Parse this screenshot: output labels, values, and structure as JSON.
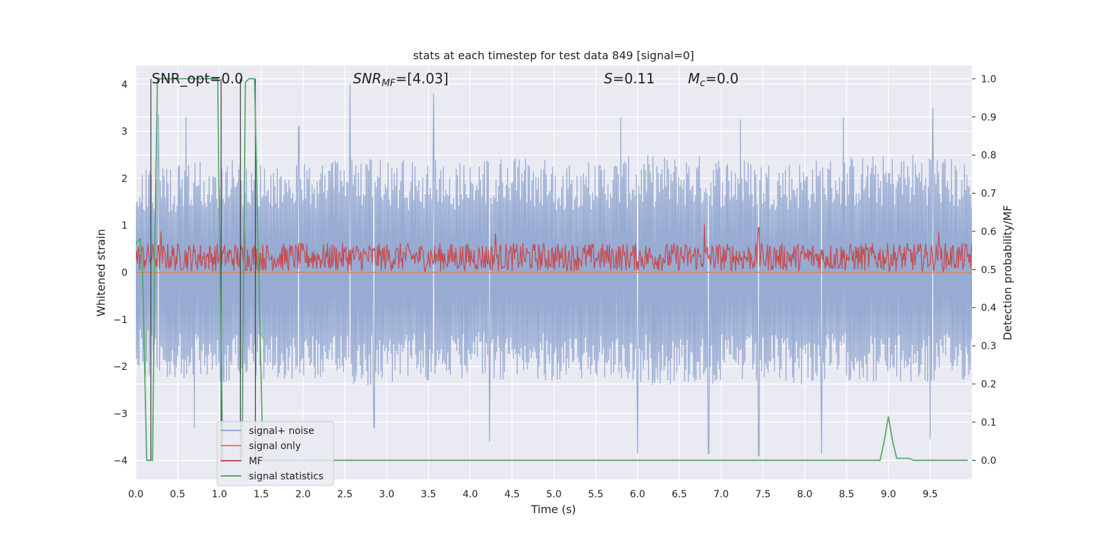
{
  "chart_data": {
    "type": "line",
    "title": "stats at each timestep for test data 849 [signal=0]",
    "xlabel": "Time (s)",
    "ylabel_left": "Whitened strain",
    "ylabel_right": "Detection probability/MF",
    "xlim": [
      0.0,
      10.0
    ],
    "ylim_left": [
      -4.4,
      4.4
    ],
    "ylim_right": [
      -0.05,
      1.035
    ],
    "grid": true,
    "legend_position": "lower-left",
    "x_ticks": [
      "0.0",
      "0.5",
      "1.0",
      "1.5",
      "2.0",
      "2.5",
      "3.0",
      "3.5",
      "4.0",
      "4.5",
      "5.0",
      "5.5",
      "6.0",
      "6.5",
      "7.0",
      "7.5",
      "8.0",
      "8.5",
      "9.0",
      "9.5"
    ],
    "y_ticks_left": [
      "4",
      "3",
      "2",
      "1",
      "0",
      "−1",
      "−2",
      "−3",
      "−4"
    ],
    "y_ticks_right": [
      "1.0",
      "0.9",
      "0.8",
      "0.7",
      "0.6",
      "0.5",
      "0.4",
      "0.3",
      "0.2",
      "0.1",
      "0.0"
    ],
    "annotations": {
      "snr_opt": "SNR_opt=0.0",
      "snr_mf_sym": "SNR",
      "snr_mf_sub": "MF",
      "snr_mf_val": "=[4.03]",
      "s_sym": "S",
      "s_val": "=0.11",
      "mc_sym": "M",
      "mc_sub": "c",
      "mc_val": "=0.0"
    },
    "series": [
      {
        "name": "signal+ noise",
        "color": "#92a8d1",
        "envelope_upper": [
          [
            0.0,
            2.2
          ],
          [
            0.5,
            2.3
          ],
          [
            1.0,
            2.4
          ],
          [
            1.5,
            2.4
          ],
          [
            2.0,
            2.3
          ],
          [
            2.5,
            2.5
          ],
          [
            3.0,
            2.4
          ],
          [
            3.5,
            2.4
          ],
          [
            4.0,
            2.4
          ],
          [
            4.5,
            2.5
          ],
          [
            5.0,
            2.4
          ],
          [
            5.5,
            2.4
          ],
          [
            6.0,
            2.5
          ],
          [
            6.5,
            2.5
          ],
          [
            7.0,
            2.5
          ],
          [
            7.5,
            2.4
          ],
          [
            8.0,
            2.4
          ],
          [
            8.5,
            2.5
          ],
          [
            9.0,
            2.5
          ],
          [
            9.5,
            2.6
          ],
          [
            10.0,
            2.3
          ]
        ],
        "envelope_lower": [
          [
            0.0,
            -2.2
          ],
          [
            0.5,
            -2.3
          ],
          [
            1.0,
            -2.4
          ],
          [
            1.5,
            -2.3
          ],
          [
            2.0,
            -2.3
          ],
          [
            2.5,
            -2.4
          ],
          [
            3.0,
            -2.4
          ],
          [
            3.5,
            -2.3
          ],
          [
            4.0,
            -2.3
          ],
          [
            4.5,
            -2.3
          ],
          [
            5.0,
            -2.3
          ],
          [
            5.5,
            -2.3
          ],
          [
            6.0,
            -2.4
          ],
          [
            6.5,
            -2.4
          ],
          [
            7.0,
            -2.4
          ],
          [
            7.5,
            -2.4
          ],
          [
            8.0,
            -2.4
          ],
          [
            8.5,
            -2.3
          ],
          [
            9.0,
            -2.4
          ],
          [
            9.5,
            -2.4
          ],
          [
            10.0,
            -2.3
          ]
        ],
        "peaks": [
          [
            0.27,
            3.35
          ],
          [
            0.6,
            3.3
          ],
          [
            1.95,
            3.1
          ],
          [
            2.56,
            4.0
          ],
          [
            3.56,
            3.8
          ],
          [
            5.8,
            3.3
          ],
          [
            7.23,
            3.25
          ],
          [
            8.46,
            3.3
          ],
          [
            9.53,
            3.5
          ]
        ],
        "troughs": [
          [
            0.7,
            -3.3
          ],
          [
            2.85,
            -3.3
          ],
          [
            4.23,
            -3.6
          ],
          [
            6.0,
            -3.85
          ],
          [
            6.85,
            -3.85
          ],
          [
            7.45,
            -3.9
          ],
          [
            8.2,
            -3.85
          ],
          [
            9.5,
            -3.55
          ]
        ]
      },
      {
        "name": "signal only",
        "color": "#dd8452",
        "values": [
          [
            0.0,
            0.0
          ],
          [
            10.0,
            0.0
          ]
        ]
      },
      {
        "name": "MF",
        "color": "#c44e52",
        "band_right_axis": [
          0.495,
          0.57
        ],
        "peaks_right_axis": [
          [
            0.3,
            0.6
          ],
          [
            1.3,
            0.6
          ],
          [
            4.3,
            0.595
          ],
          [
            6.8,
            0.62
          ],
          [
            7.45,
            0.61
          ],
          [
            9.6,
            0.6
          ]
        ]
      },
      {
        "name": "signal statistics",
        "color": "#55a868",
        "values": [
          [
            0.0,
            0.57
          ],
          [
            0.05,
            0.58
          ],
          [
            0.08,
            0.5
          ],
          [
            0.13,
            0.0
          ],
          [
            0.2,
            0.0
          ],
          [
            0.23,
            0.6
          ],
          [
            0.26,
            1.0
          ],
          [
            0.3,
            1.0
          ],
          [
            0.98,
            1.0
          ],
          [
            1.0,
            0.6
          ],
          [
            1.04,
            0.0
          ],
          [
            1.27,
            0.0
          ],
          [
            1.31,
            0.99
          ],
          [
            1.35,
            1.0
          ],
          [
            1.42,
            1.0
          ],
          [
            1.47,
            0.5
          ],
          [
            1.52,
            0.0
          ],
          [
            1.6,
            0.0
          ],
          [
            8.9,
            0.0
          ],
          [
            8.95,
            0.05
          ],
          [
            9.0,
            0.115
          ],
          [
            9.05,
            0.05
          ],
          [
            9.1,
            0.005
          ],
          [
            9.25,
            0.005
          ],
          [
            9.3,
            0.0
          ],
          [
            9.95,
            0.0
          ]
        ]
      }
    ],
    "vertical_markers_x": [
      0.18,
      1.02,
      1.25,
      1.43
    ],
    "vertical_marker_color": "#444444"
  },
  "legend": [
    {
      "label": "signal+ noise",
      "color": "#92a8d1"
    },
    {
      "label": "signal only",
      "color": "#dd8452"
    },
    {
      "label": "MF",
      "color": "#c44e52"
    },
    {
      "label": "signal statistics",
      "color": "#55a868"
    }
  ]
}
